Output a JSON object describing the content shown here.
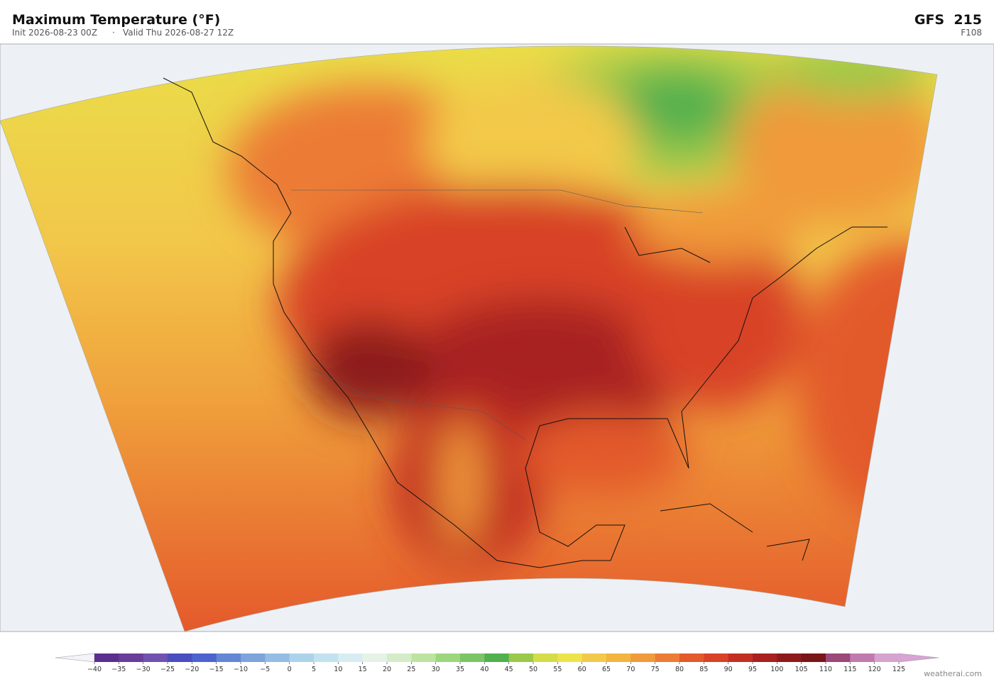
{
  "header": {
    "title": "Maximum Temperature  (°F)",
    "init": "Init 2026-08-23 00Z",
    "separator": "·",
    "valid": "Valid Thu 2026-08-27 12Z",
    "model": "GFS  215",
    "forecast_hour": "F108"
  },
  "colorbar": {
    "ticks": [
      {
        "value": -40,
        "label": "−40"
      },
      {
        "value": -35,
        "label": "−35"
      },
      {
        "value": -30,
        "label": "−30"
      },
      {
        "value": -25,
        "label": "−25"
      },
      {
        "value": -20,
        "label": "−20"
      },
      {
        "value": -15,
        "label": "−15"
      },
      {
        "value": -10,
        "label": "−10"
      },
      {
        "value": -5,
        "label": "−5"
      },
      0,
      5,
      10,
      15,
      20,
      25,
      30,
      35,
      40,
      45,
      50,
      55,
      60,
      65,
      70,
      75,
      80,
      85,
      90,
      95,
      100,
      105,
      110,
      115,
      120,
      125
    ],
    "colors": [
      "#5b2e8f",
      "#6a3d9a",
      "#7152b0",
      "#4a4ebf",
      "#4e63cc",
      "#6585d5",
      "#7ea4dc",
      "#95bde3",
      "#add3ea",
      "#c3e2ef",
      "#d8edf2",
      "#e4f3e6",
      "#d5ecc8",
      "#bde3a0",
      "#9ed67e",
      "#7cc566",
      "#52b04e",
      "#9bc94a",
      "#d4dc48",
      "#ece44a",
      "#f3c94a",
      "#f3b440",
      "#f09a3b",
      "#ec7c35",
      "#e35a2b",
      "#d84227",
      "#c22f22",
      "#a82020",
      "#8d1b1b",
      "#7a1518",
      "#9c4878",
      "#c17aae",
      "#d6a3ce"
    ],
    "under_color": "#f4f4f8",
    "over_color": "#d9a3d4"
  },
  "credit": "weatherai.com"
}
